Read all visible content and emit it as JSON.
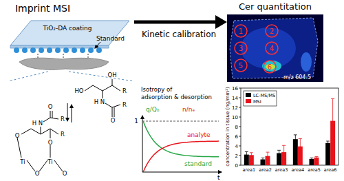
{
  "imprint": {
    "title": "Imprint MSI",
    "coating": "TiO₂-DA coating",
    "standard": "Standard"
  },
  "calibration": {
    "label": "Kinetic calibration"
  },
  "quantitation": {
    "title": "Cer quantitation",
    "regions": [
      "1",
      "2",
      "3",
      "4",
      "5",
      "6"
    ],
    "ion": "m/z 604.5"
  },
  "structure": {
    "free": [
      "HO",
      "OH",
      "N",
      "H",
      "O",
      "R",
      "R"
    ],
    "bound": [
      "O",
      "O",
      "N",
      "H",
      "O",
      "R",
      "R",
      "Ti",
      "Ti",
      "O",
      "O"
    ]
  },
  "kinetics": {
    "title": [
      "Isotropy of",
      "adsorption & desorption"
    ],
    "left_label": "q/Q₀",
    "right_label": "n/nₑ",
    "y_tick": "1",
    "x_label": "t",
    "analyte": "analyte",
    "standard": "standard"
  },
  "chart_data": {
    "type": "bar",
    "y_label": "concentration in tissue (ng/mm²)",
    "categories": [
      "area1",
      "area2",
      "area3",
      "area4",
      "area5",
      "area6"
    ],
    "series": [
      {
        "name": "LC-MS/MS",
        "color": "#000000",
        "values": [
          2.2,
          1.2,
          2.5,
          5.4,
          1.3,
          4.6
        ],
        "errors": [
          0.6,
          0.3,
          0.6,
          0.9,
          0.2,
          0.4
        ]
      },
      {
        "name": "MSI",
        "color": "#e8141c",
        "values": [
          2.1,
          1.9,
          2.7,
          3.9,
          1.6,
          9.2
        ],
        "errors": [
          0.5,
          0.8,
          1.4,
          1.6,
          0.2,
          4.6
        ]
      }
    ],
    "ylim": [
      0,
      16
    ],
    "yticks": [
      0,
      2,
      4,
      6,
      8,
      10,
      12,
      14,
      16
    ],
    "grid": false,
    "legend": "upper left"
  }
}
